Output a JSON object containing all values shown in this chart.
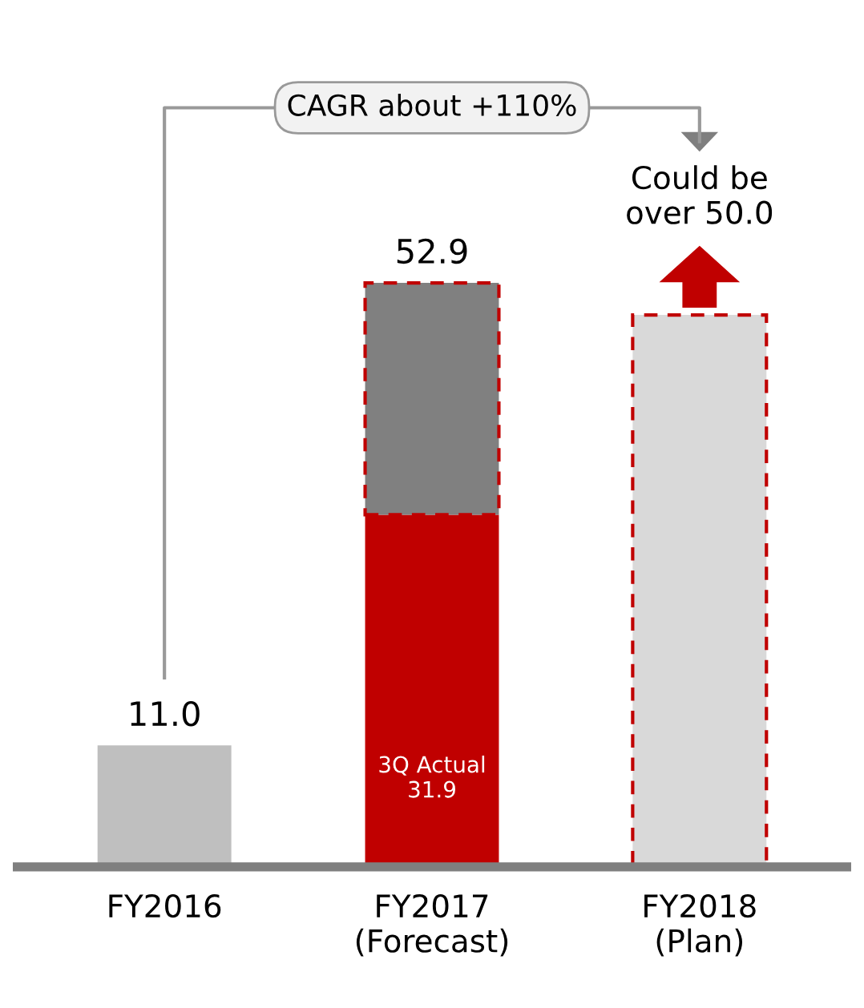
{
  "chart_data": {
    "type": "bar",
    "stacked": true,
    "categories": [
      "FY2016",
      "FY2017\n(Forecast)",
      "FY2018\n(Plan)"
    ],
    "series": [
      {
        "colors": [
          "#bfbfbf",
          "#c00000",
          null
        ],
        "values": [
          11.0,
          31.9,
          null
        ],
        "value_labels": [
          null,
          "3Q Actual\n31.9",
          null
        ]
      },
      {
        "colors": [
          null,
          "#808080",
          "#d9d9d9"
        ],
        "values": [
          null,
          21.0,
          50.0
        ],
        "line_style": "dashed"
      }
    ],
    "totals": [
      "11.0",
      "52.9",
      null
    ],
    "annotations": [
      "CAGR about +110%",
      {
        "text": "Could be\nover 50.0",
        "x": "FY2018\n(Plan)",
        "y": 50.0
      }
    ],
    "grid": false,
    "legend": false
  }
}
